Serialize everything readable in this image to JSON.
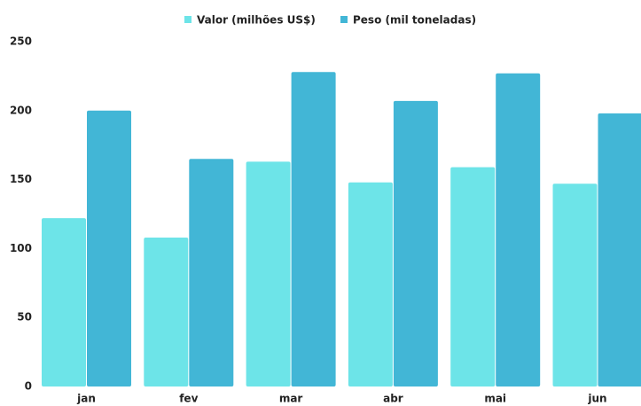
{
  "chart_data": {
    "type": "bar",
    "categories": [
      "jan",
      "fev",
      "mar",
      "abr",
      "mai",
      "jun"
    ],
    "series": [
      {
        "name": "Valor (milhões US$)",
        "color": "#6de4e8",
        "values": [
          122,
          108,
          163,
          148,
          159,
          147
        ]
      },
      {
        "name": "Peso (mil toneladas)",
        "color": "#42b6d6",
        "values": [
          200,
          165,
          228,
          207,
          227,
          198
        ]
      }
    ],
    "ylim": [
      0,
      250
    ],
    "yticks": [
      0,
      50,
      100,
      150,
      200,
      250
    ],
    "legend": "top"
  }
}
